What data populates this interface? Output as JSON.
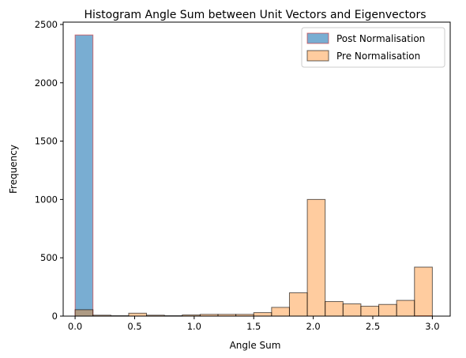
{
  "chart_data": {
    "type": "bar",
    "title": "Histogram Angle Sum between Unit Vectors and Eigenvectors",
    "xlabel": "Angle Sum",
    "ylabel": "Frequency",
    "xlim": [
      -0.1,
      3.15
    ],
    "ylim": [
      0,
      2520
    ],
    "x_ticks": [
      0.0,
      0.5,
      1.0,
      1.5,
      2.0,
      2.5,
      3.0
    ],
    "x_tick_labels": [
      "0.0",
      "0.5",
      "1.0",
      "1.5",
      "2.0",
      "2.5",
      "3.0"
    ],
    "y_ticks": [
      0,
      500,
      1000,
      1500,
      2000,
      2500
    ],
    "y_tick_labels": [
      "0",
      "500",
      "1000",
      "1500",
      "2000",
      "2500"
    ],
    "bin_edges": [
      0.0,
      0.15,
      0.3,
      0.45,
      0.6,
      0.75,
      0.9,
      1.05,
      1.2,
      1.35,
      1.5,
      1.65,
      1.8,
      1.95,
      2.1,
      2.25,
      2.4,
      2.55,
      2.7,
      2.85,
      3.0
    ],
    "legend_position": "upper right",
    "grid": false,
    "series": [
      {
        "name": "Post Normalisation",
        "color": "#1f77b4",
        "alpha": 0.6,
        "edgecolor": "#d62728",
        "values": [
          2410,
          0,
          0,
          0,
          0,
          0,
          0,
          0,
          0,
          0,
          0,
          0,
          0,
          0,
          0,
          0,
          0,
          0,
          0,
          3
        ]
      },
      {
        "name": "Pre Normalisation",
        "color": "#ff7f0e",
        "alpha": 0.4,
        "edgecolor": "#000000",
        "values": [
          55,
          8,
          4,
          25,
          8,
          4,
          10,
          15,
          15,
          15,
          30,
          75,
          200,
          1000,
          125,
          105,
          85,
          100,
          135,
          420
        ]
      }
    ]
  }
}
